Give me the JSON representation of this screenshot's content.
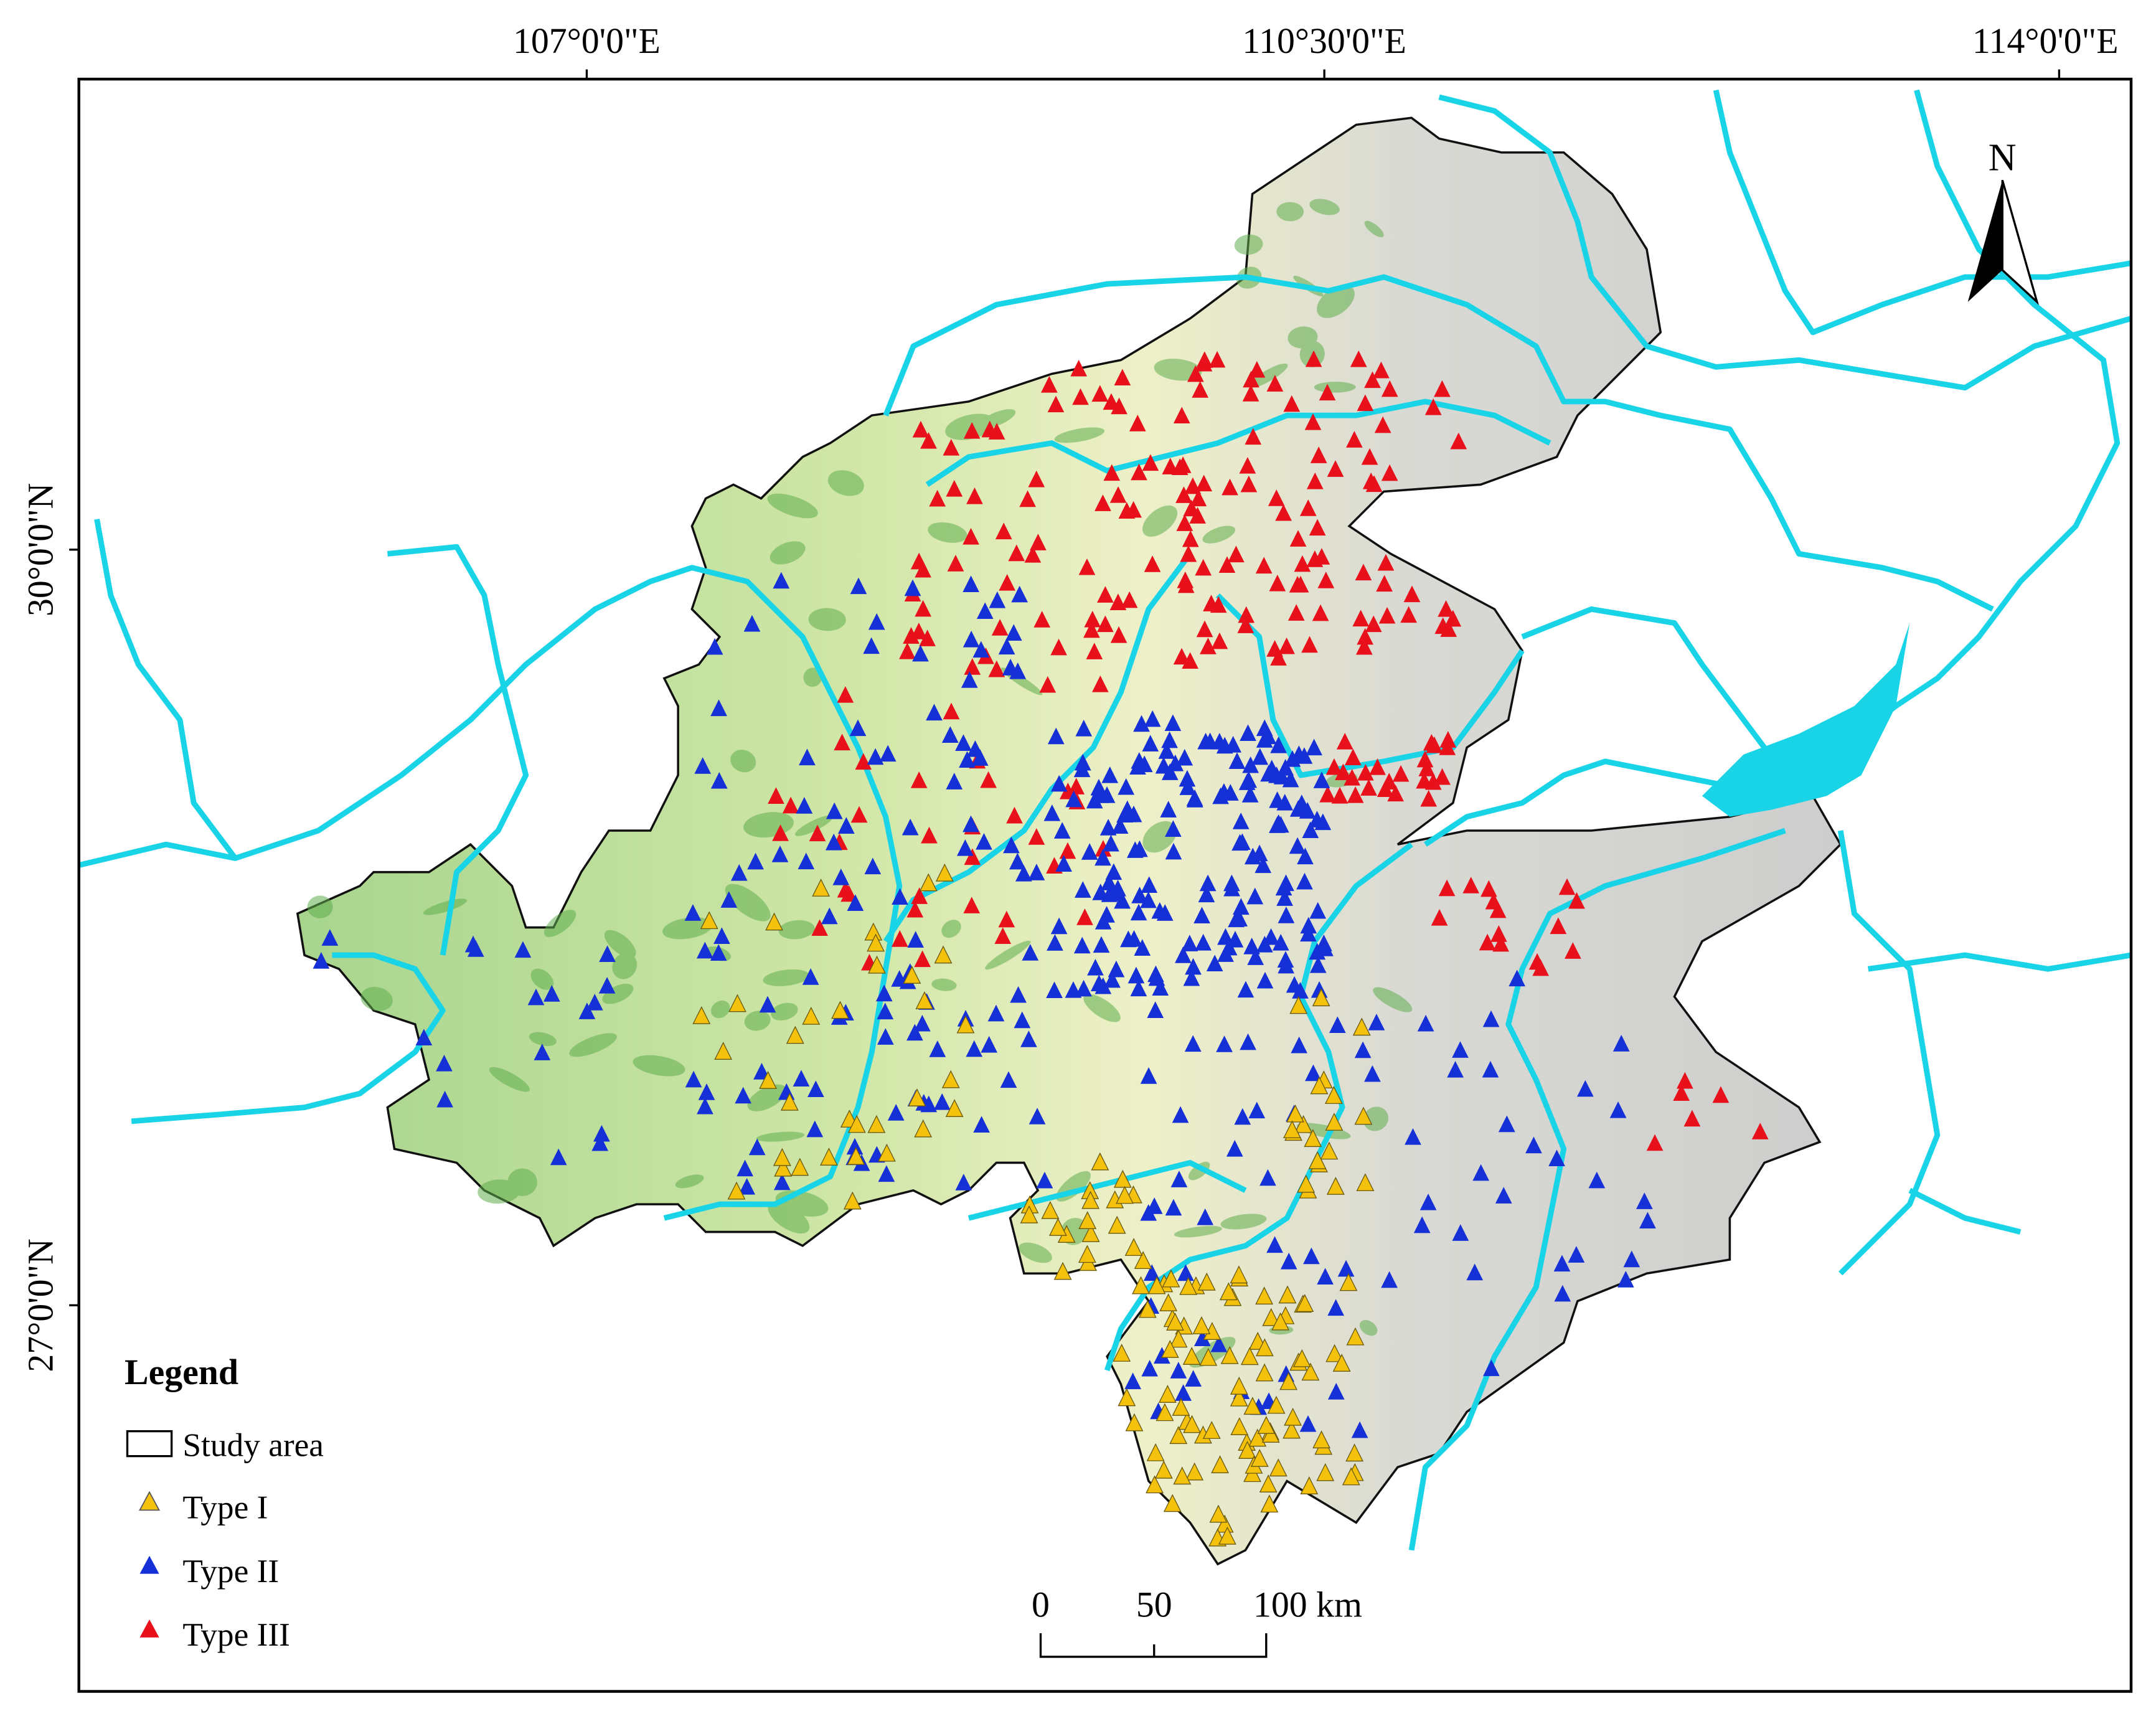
{
  "map": {
    "longitude_labels": [
      "107°0'0\"E",
      "110°30'0\"E",
      "114°0'0\"E"
    ],
    "latitude_labels": [
      "30°0'0\"N",
      "27°0'0\"N"
    ],
    "north_arrow": "N",
    "legend": {
      "title": "Legend",
      "items": [
        "Study area",
        "Type I",
        "Type II",
        "Type III"
      ]
    },
    "scale_bar": [
      "0",
      "50",
      "100 km"
    ]
  }
}
